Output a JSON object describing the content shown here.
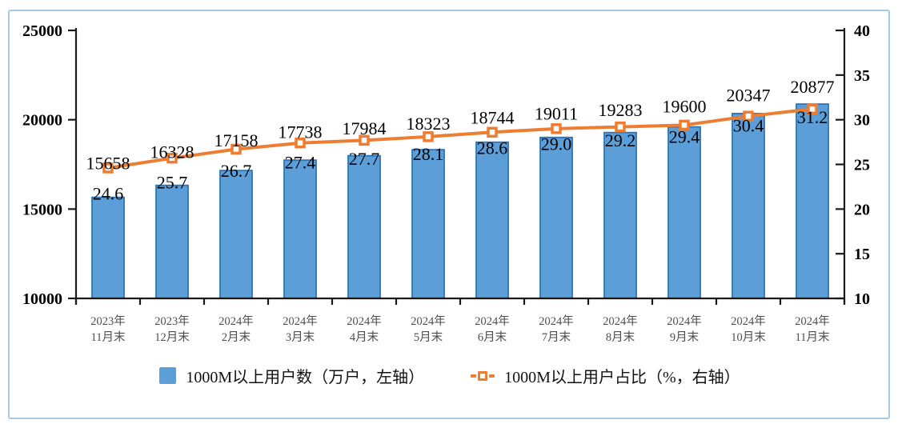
{
  "chart_data": {
    "type": "combo",
    "categories": [
      "2023年11月末",
      "2023年12月末",
      "2024年2月末",
      "2024年3月末",
      "2024年4月末",
      "2024年5月末",
      "2024年6月末",
      "2024年7月末",
      "2024年8月末",
      "2024年9月末",
      "2024年10月末",
      "2024年11月末"
    ],
    "categories_two_line": [
      [
        "2023年",
        "11月末"
      ],
      [
        "2023年",
        "12月末"
      ],
      [
        "2024年",
        "2月末"
      ],
      [
        "2024年",
        "3月末"
      ],
      [
        "2024年",
        "4月末"
      ],
      [
        "2024年",
        "5月末"
      ],
      [
        "2024年",
        "6月末"
      ],
      [
        "2024年",
        "7月末"
      ],
      [
        "2024年",
        "8月末"
      ],
      [
        "2024年",
        "9月末"
      ],
      [
        "2024年",
        "10月末"
      ],
      [
        "2024年",
        "11月末"
      ]
    ],
    "series": [
      {
        "kind": "bar",
        "name": "1000M以上用户数（万户，左轴）",
        "axis": "left",
        "values": [
          15658,
          16328,
          17158,
          17738,
          17984,
          18323,
          18744,
          19011,
          19283,
          19600,
          20347,
          20877
        ]
      },
      {
        "kind": "line",
        "name": "1000M以上用户占比（%，右轴）",
        "axis": "right",
        "values": [
          24.6,
          25.7,
          26.7,
          27.4,
          27.7,
          28.1,
          28.6,
          29.0,
          29.2,
          29.4,
          30.4,
          31.2
        ],
        "label_decimals": 1
      }
    ],
    "left_axis": {
      "min": 10000,
      "max": 25000,
      "ticks": [
        10000,
        15000,
        20000,
        25000
      ]
    },
    "right_axis": {
      "min": 10,
      "max": 40,
      "ticks": [
        10,
        15,
        20,
        25,
        30,
        35,
        40
      ]
    },
    "grid": false,
    "legend_position": "bottom"
  },
  "colors": {
    "bar_fill": "#5B9ED8",
    "bar_stroke": "#2E75B6",
    "line": "#ED7D31",
    "marker_fill": "#FFFFFF",
    "card_border": "#A5C9E7",
    "axis": "#1A1A1A",
    "tick_label": "#000000",
    "x_label": "#4D4D4D"
  }
}
